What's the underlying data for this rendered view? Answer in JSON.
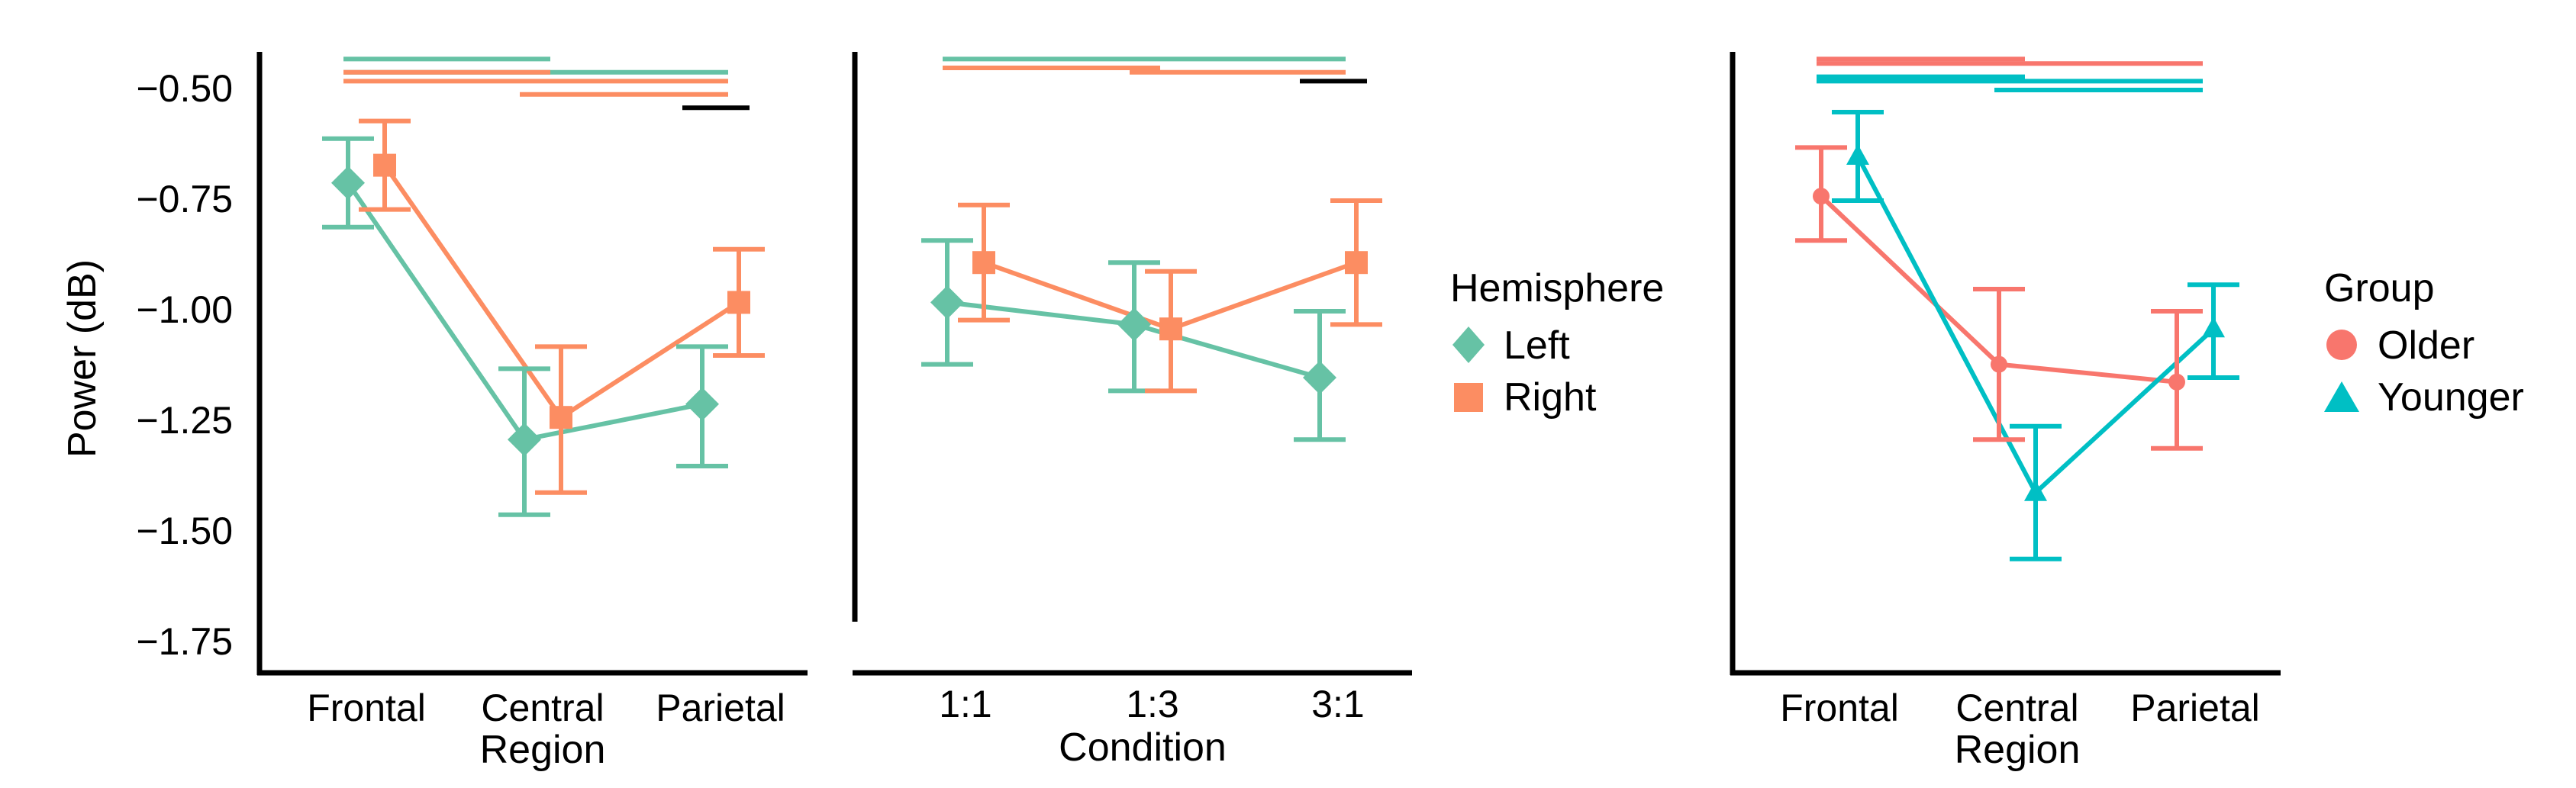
{
  "y_axis": {
    "label": "Power (dB)",
    "ticks": [
      -0.5,
      -0.75,
      -1.0,
      -1.25,
      -1.5,
      -1.75
    ],
    "tick_labels": [
      "−0.50",
      "−0.75",
      "−1.00",
      "−1.25",
      "−1.50",
      "−1.75"
    ],
    "ylim": [
      -1.82,
      -0.4
    ]
  },
  "legend_hemisphere": {
    "title": "Hemisphere",
    "items": [
      "Left",
      "Right"
    ]
  },
  "legend_group": {
    "title": "Group",
    "items": [
      "Older",
      "Younger"
    ]
  },
  "colors": {
    "left": "#66c2a5",
    "right": "#fc8d62",
    "older": "#f8766d",
    "younger": "#00bfc4",
    "sig": "#000000"
  },
  "chart_data": [
    {
      "type": "line",
      "panel": "region-by-hemisphere",
      "xlabel": "Region",
      "ylabel": "Power (dB)",
      "categories": [
        "Frontal",
        "Central",
        "Parietal"
      ],
      "category_labels": [
        "Frontal",
        "Central",
        "Parietal"
      ],
      "series": [
        {
          "name": "Left",
          "color": "#66c2a5",
          "marker": "diamond",
          "offset": -0.5,
          "values": [
            -0.71,
            -1.29,
            -1.21
          ],
          "lower": [
            -0.81,
            -1.46,
            -1.35
          ],
          "upper": [
            -0.61,
            -1.13,
            -1.08
          ]
        },
        {
          "name": "Right",
          "color": "#fc8d62",
          "marker": "square",
          "offset": 0.5,
          "values": [
            -0.67,
            -1.24,
            -0.98
          ],
          "lower": [
            -0.77,
            -1.41,
            -1.1
          ],
          "upper": [
            -0.57,
            -1.08,
            -0.86
          ]
        }
      ],
      "significance": [
        {
          "color": "#66c2a5",
          "from": 0,
          "to": 1,
          "value": -0.43
        },
        {
          "color": "#66c2a5",
          "from": 0,
          "to": 2,
          "value": -0.46
        },
        {
          "color": "#fc8d62",
          "from": 0,
          "to": 1,
          "value": -0.46
        },
        {
          "color": "#fc8d62",
          "from": 0,
          "to": 2,
          "value": -0.48
        },
        {
          "color": "#fc8d62",
          "from": 1,
          "to": 2,
          "value": -0.51
        },
        {
          "color": "#000000",
          "from": 2,
          "to": 2,
          "value": -0.54
        }
      ]
    },
    {
      "type": "line",
      "panel": "condition-by-hemisphere",
      "xlabel": "Condition",
      "ylabel": "Power (dB)",
      "categories": [
        "1:1",
        "1:3",
        "3:1"
      ],
      "series": [
        {
          "name": "Left",
          "color": "#66c2a5",
          "marker": "diamond",
          "offset": -0.5,
          "values": [
            -0.98,
            -1.03,
            -1.15
          ],
          "lower": [
            -1.12,
            -1.18,
            -1.29
          ],
          "upper": [
            -0.84,
            -0.89,
            -1.0
          ]
        },
        {
          "name": "Right",
          "color": "#fc8d62",
          "marker": "square",
          "offset": 0.5,
          "values": [
            -0.89,
            -1.04,
            -0.89
          ],
          "lower": [
            -1.02,
            -1.18,
            -1.03
          ],
          "upper": [
            -0.76,
            -0.91,
            -0.75
          ]
        }
      ],
      "significance": [
        {
          "color": "#66c2a5",
          "from": 0,
          "to": 2,
          "value": -0.43
        },
        {
          "color": "#fc8d62",
          "from": 0,
          "to": 1,
          "value": -0.45
        },
        {
          "color": "#fc8d62",
          "from": 1,
          "to": 2,
          "value": -0.46
        },
        {
          "color": "#000000",
          "from": 2,
          "to": 2,
          "value": -0.48
        }
      ]
    },
    {
      "type": "line",
      "panel": "region-by-group",
      "xlabel": "Region",
      "ylabel": "Power (dB)",
      "categories": [
        "Frontal",
        "Central",
        "Parietal"
      ],
      "category_labels": [
        "Frontal",
        "Central",
        "Parietal"
      ],
      "series": [
        {
          "name": "Older",
          "color": "#f8766d",
          "marker": "circle",
          "offset": -0.5,
          "values": [
            -0.74,
            -1.12,
            -1.16
          ],
          "lower": [
            -0.84,
            -1.29,
            -1.31
          ],
          "upper": [
            -0.63,
            -0.95,
            -1.0
          ]
        },
        {
          "name": "Younger",
          "color": "#00bfc4",
          "marker": "triangle",
          "offset": 0.5,
          "values": [
            -0.65,
            -1.41,
            -1.04
          ],
          "lower": [
            -0.75,
            -1.56,
            -1.15
          ],
          "upper": [
            -0.55,
            -1.26,
            -0.94
          ]
        }
      ],
      "significance": [
        {
          "color": "#f8766d",
          "from": 0,
          "to": 1,
          "value": -0.43
        },
        {
          "color": "#f8766d",
          "from": 0,
          "to": 2,
          "value": -0.44
        },
        {
          "color": "#00bfc4",
          "from": 0,
          "to": 1,
          "value": -0.47
        },
        {
          "color": "#00bfc4",
          "from": 0,
          "to": 2,
          "value": -0.48
        },
        {
          "color": "#00bfc4",
          "from": 1,
          "to": 2,
          "value": -0.5
        }
      ]
    }
  ]
}
